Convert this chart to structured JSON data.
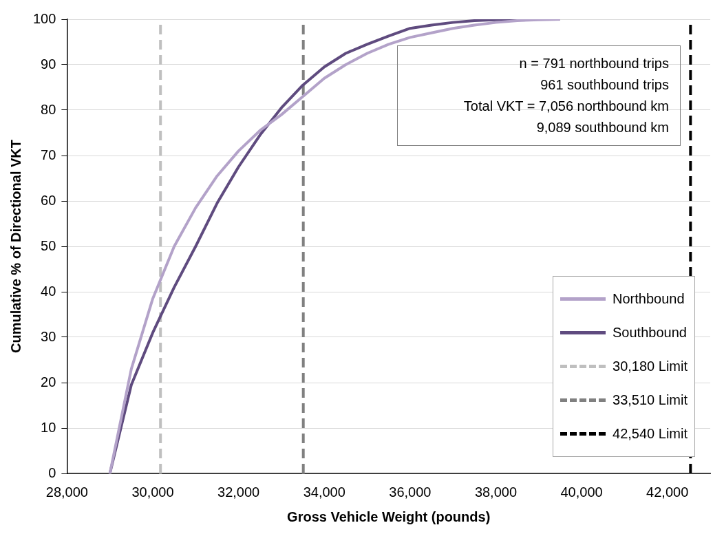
{
  "chart_data": {
    "type": "line",
    "xlabel": "Gross Vehicle Weight (pounds)",
    "ylabel": "Cumulative % of Directional VKT",
    "xlim": [
      28000,
      43000
    ],
    "xticks": [
      {
        "value": 28000,
        "label": "28,000"
      },
      {
        "value": 30000,
        "label": "30,000"
      },
      {
        "value": 32000,
        "label": "32,000"
      },
      {
        "value": 34000,
        "label": "34,000"
      },
      {
        "value": 36000,
        "label": "36,000"
      },
      {
        "value": 38000,
        "label": "38,000"
      },
      {
        "value": 40000,
        "label": "40,000"
      },
      {
        "value": 42000,
        "label": "42,000"
      }
    ],
    "ylim": [
      0,
      100
    ],
    "yticks": [
      0,
      10,
      20,
      30,
      40,
      50,
      60,
      70,
      80,
      90,
      100
    ],
    "grid": "y",
    "legend": "bottom right",
    "marker": "none",
    "line_style": "solid",
    "series": [
      {
        "name": "Northbound",
        "color": "#b3a2c9",
        "x": [
          29000,
          29500,
          30000,
          30500,
          31000,
          31500,
          32000,
          32500,
          33000,
          33500,
          34000,
          34500,
          35000,
          35500,
          36000,
          36500,
          37000,
          37500,
          38000,
          38500,
          39000,
          39500
        ],
        "values": [
          0,
          23,
          38.5,
          50,
          58.5,
          65.5,
          71,
          75.5,
          79,
          83,
          87,
          90,
          92.5,
          94.5,
          96,
          97,
          98,
          98.7,
          99.3,
          99.7,
          99.9,
          100
        ]
      },
      {
        "name": "Southbound",
        "color": "#5f4b7f",
        "x": [
          29000,
          29500,
          30000,
          30500,
          31000,
          31500,
          32000,
          32500,
          33000,
          33500,
          34000,
          34500,
          35000,
          35500,
          36000,
          36500,
          37000,
          37500,
          38000,
          38500,
          39000
        ],
        "values": [
          0,
          19.5,
          31,
          41,
          50,
          59.5,
          67.5,
          74.5,
          80.5,
          85.5,
          89.5,
          92.5,
          94.5,
          96.3,
          98,
          98.7,
          99.3,
          99.7,
          99.9,
          100,
          100
        ]
      },
      {
        "name": "30,180 Limit",
        "color": "#bfbfbf",
        "line_style": "dashed",
        "x": [
          30180,
          30180
        ],
        "values": [
          0,
          100
        ]
      },
      {
        "name": "33,510 Limit",
        "color": "#808080",
        "line_style": "dashed",
        "x": [
          33510,
          33510
        ],
        "values": [
          0,
          100
        ]
      },
      {
        "name": "42,540 Limit",
        "color": "#000000",
        "line_style": "dashed",
        "x": [
          42540,
          42540
        ],
        "values": [
          0,
          100
        ]
      }
    ],
    "annotations": [
      "n = 791 northbound trips",
      "961 southbound trips",
      "Total VKT = 7,056 northbound km",
      "9,089 southbound km"
    ]
  }
}
